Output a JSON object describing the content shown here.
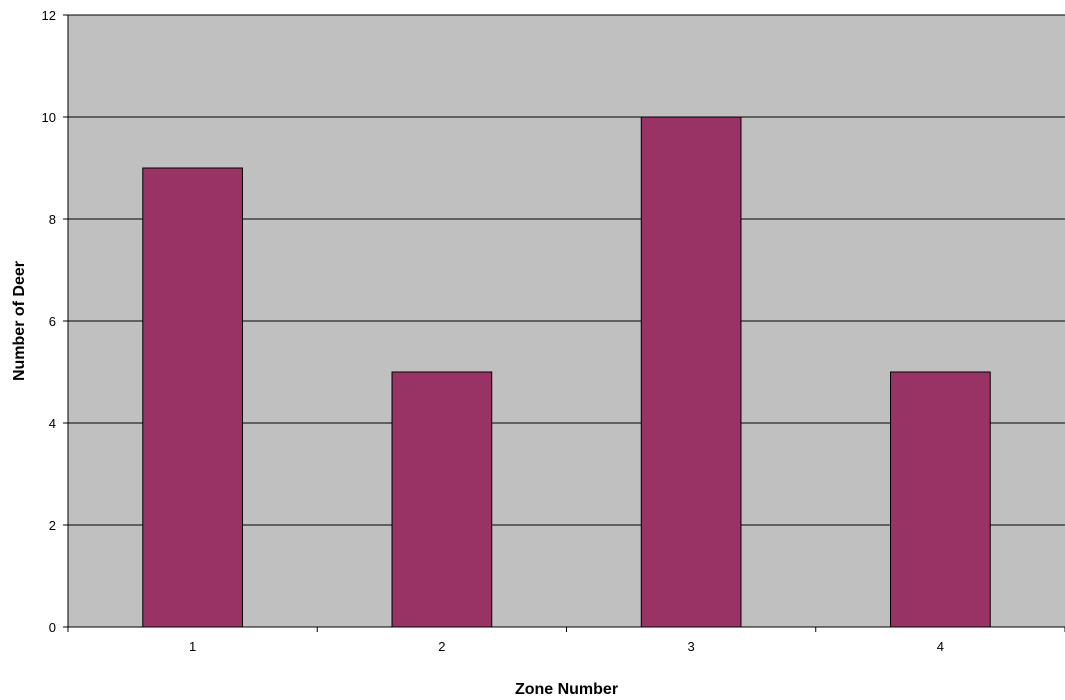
{
  "chart_data": {
    "type": "bar",
    "categories": [
      "1",
      "2",
      "3",
      "4"
    ],
    "values": [
      9,
      5,
      10,
      5
    ],
    "xlabel": "Zone Number",
    "ylabel": "Number of Deer",
    "ylim": [
      0,
      12
    ],
    "yticks": [
      0,
      2,
      4,
      6,
      8,
      10,
      12
    ],
    "grid": true,
    "legend": "none"
  },
  "colors": {
    "bar_fill": "#993366",
    "bar_stroke": "#000000",
    "plot_background": "#c0c0c0",
    "gridline": "#000000"
  }
}
